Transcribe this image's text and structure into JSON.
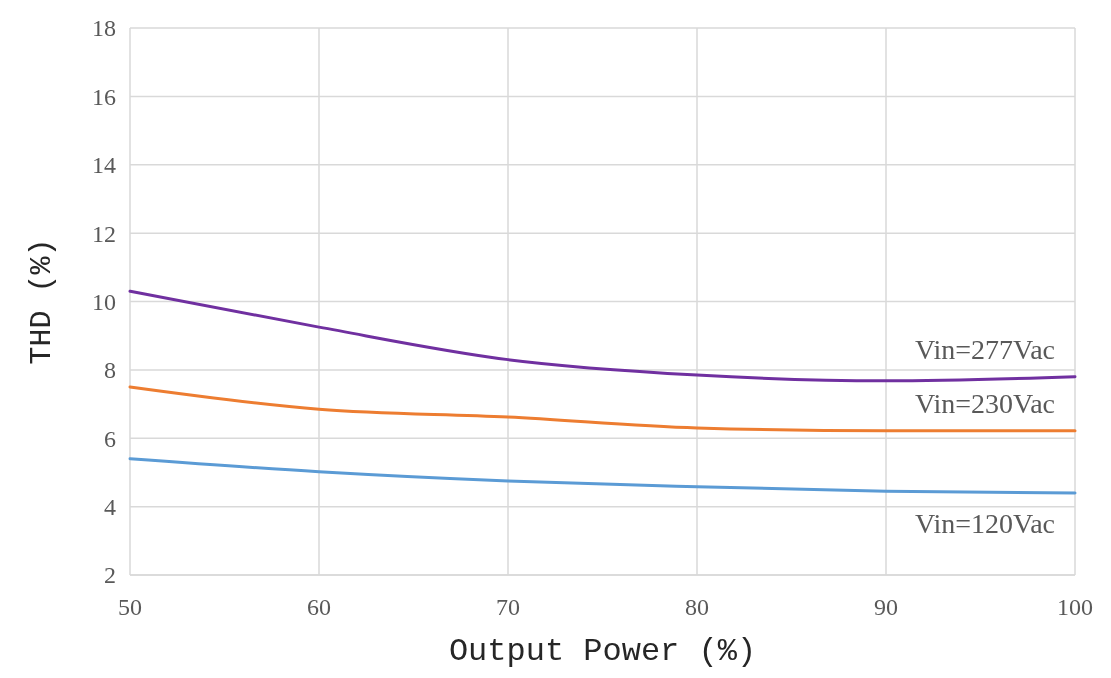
{
  "chart_data": {
    "type": "line",
    "xlabel": "Output Power (%)",
    "ylabel": "THD (%)",
    "x": [
      50,
      60,
      70,
      80,
      90,
      100
    ],
    "xlim": [
      50,
      100
    ],
    "xticks": [
      50,
      60,
      70,
      80,
      90,
      100
    ],
    "ylim": [
      2,
      18
    ],
    "yticks": [
      2,
      4,
      6,
      8,
      10,
      12,
      14,
      16,
      18
    ],
    "grid": true,
    "marker": "none",
    "line_style": "solid",
    "series": [
      {
        "name": "Vin=277Vac",
        "color": "#7030a0",
        "values": [
          10.3,
          9.25,
          8.3,
          7.85,
          7.68,
          7.8
        ]
      },
      {
        "name": "Vin=230Vac",
        "color": "#ed7d31",
        "values": [
          7.5,
          6.85,
          6.62,
          6.3,
          6.22,
          6.22
        ]
      },
      {
        "name": "Vin=120Vac",
        "color": "#5b9bd5",
        "values": [
          5.4,
          5.02,
          4.75,
          4.58,
          4.45,
          4.4
        ]
      }
    ]
  }
}
